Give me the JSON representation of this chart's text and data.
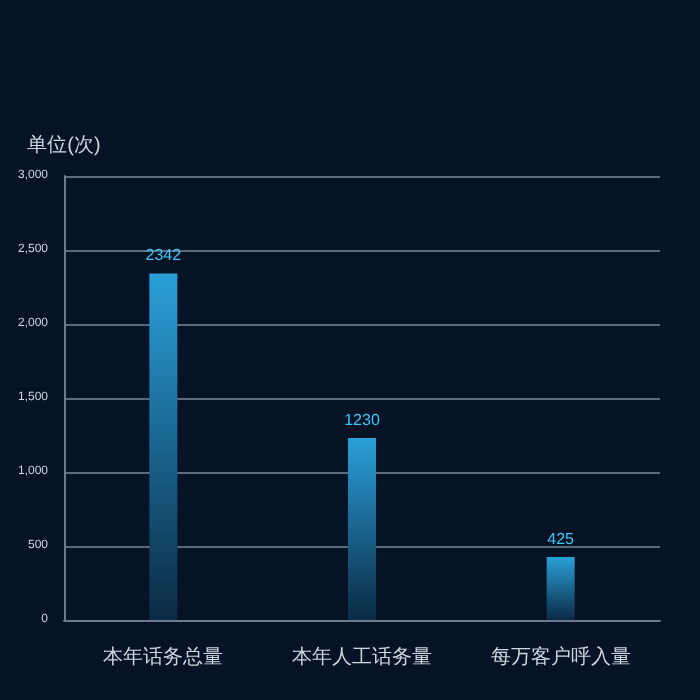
{
  "chart_data": {
    "type": "bar",
    "ylabel": "单位(次)",
    "categories": [
      "本年话务总量",
      "本年人工话务量",
      "每万客户呼入量"
    ],
    "values": [
      2342,
      1230,
      425
    ],
    "color": "#2a9fd8",
    "ylim": [
      0,
      3000
    ],
    "yticks": [
      0,
      500,
      {
        "value": 1000,
        "label": "1,000"
      },
      {
        "value": 1500,
        "label": "1,500"
      },
      {
        "value": 2000,
        "label": "2,000"
      },
      {
        "value": 2500,
        "label": "2,500"
      },
      {
        "value": 3000,
        "label": "3,000"
      }
    ],
    "grid": "y",
    "data_labels": true
  }
}
